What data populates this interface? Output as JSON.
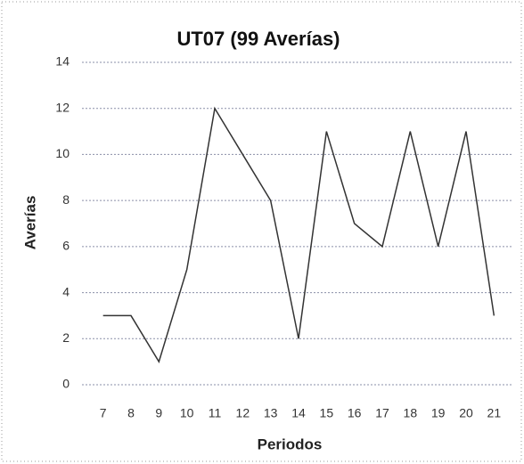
{
  "chart_data": {
    "type": "line",
    "title": "UT07 (99 Averías)",
    "x_label": "Periodos",
    "y_label": "Averías",
    "categories": [
      "7",
      "8",
      "9",
      "10",
      "11",
      "12",
      "13",
      "14",
      "15",
      "16",
      "17",
      "18",
      "19",
      "20",
      "21"
    ],
    "series": [
      {
        "name": "UT07",
        "color": "#333333",
        "values": [
          3,
          3,
          1,
          5,
          12,
          10,
          8,
          2,
          11,
          7,
          6,
          11,
          6,
          11,
          3
        ]
      }
    ],
    "ylim": [
      0,
      14
    ],
    "yticks": [
      0,
      2,
      4,
      6,
      8,
      10,
      12,
      14
    ],
    "grid": true
  }
}
